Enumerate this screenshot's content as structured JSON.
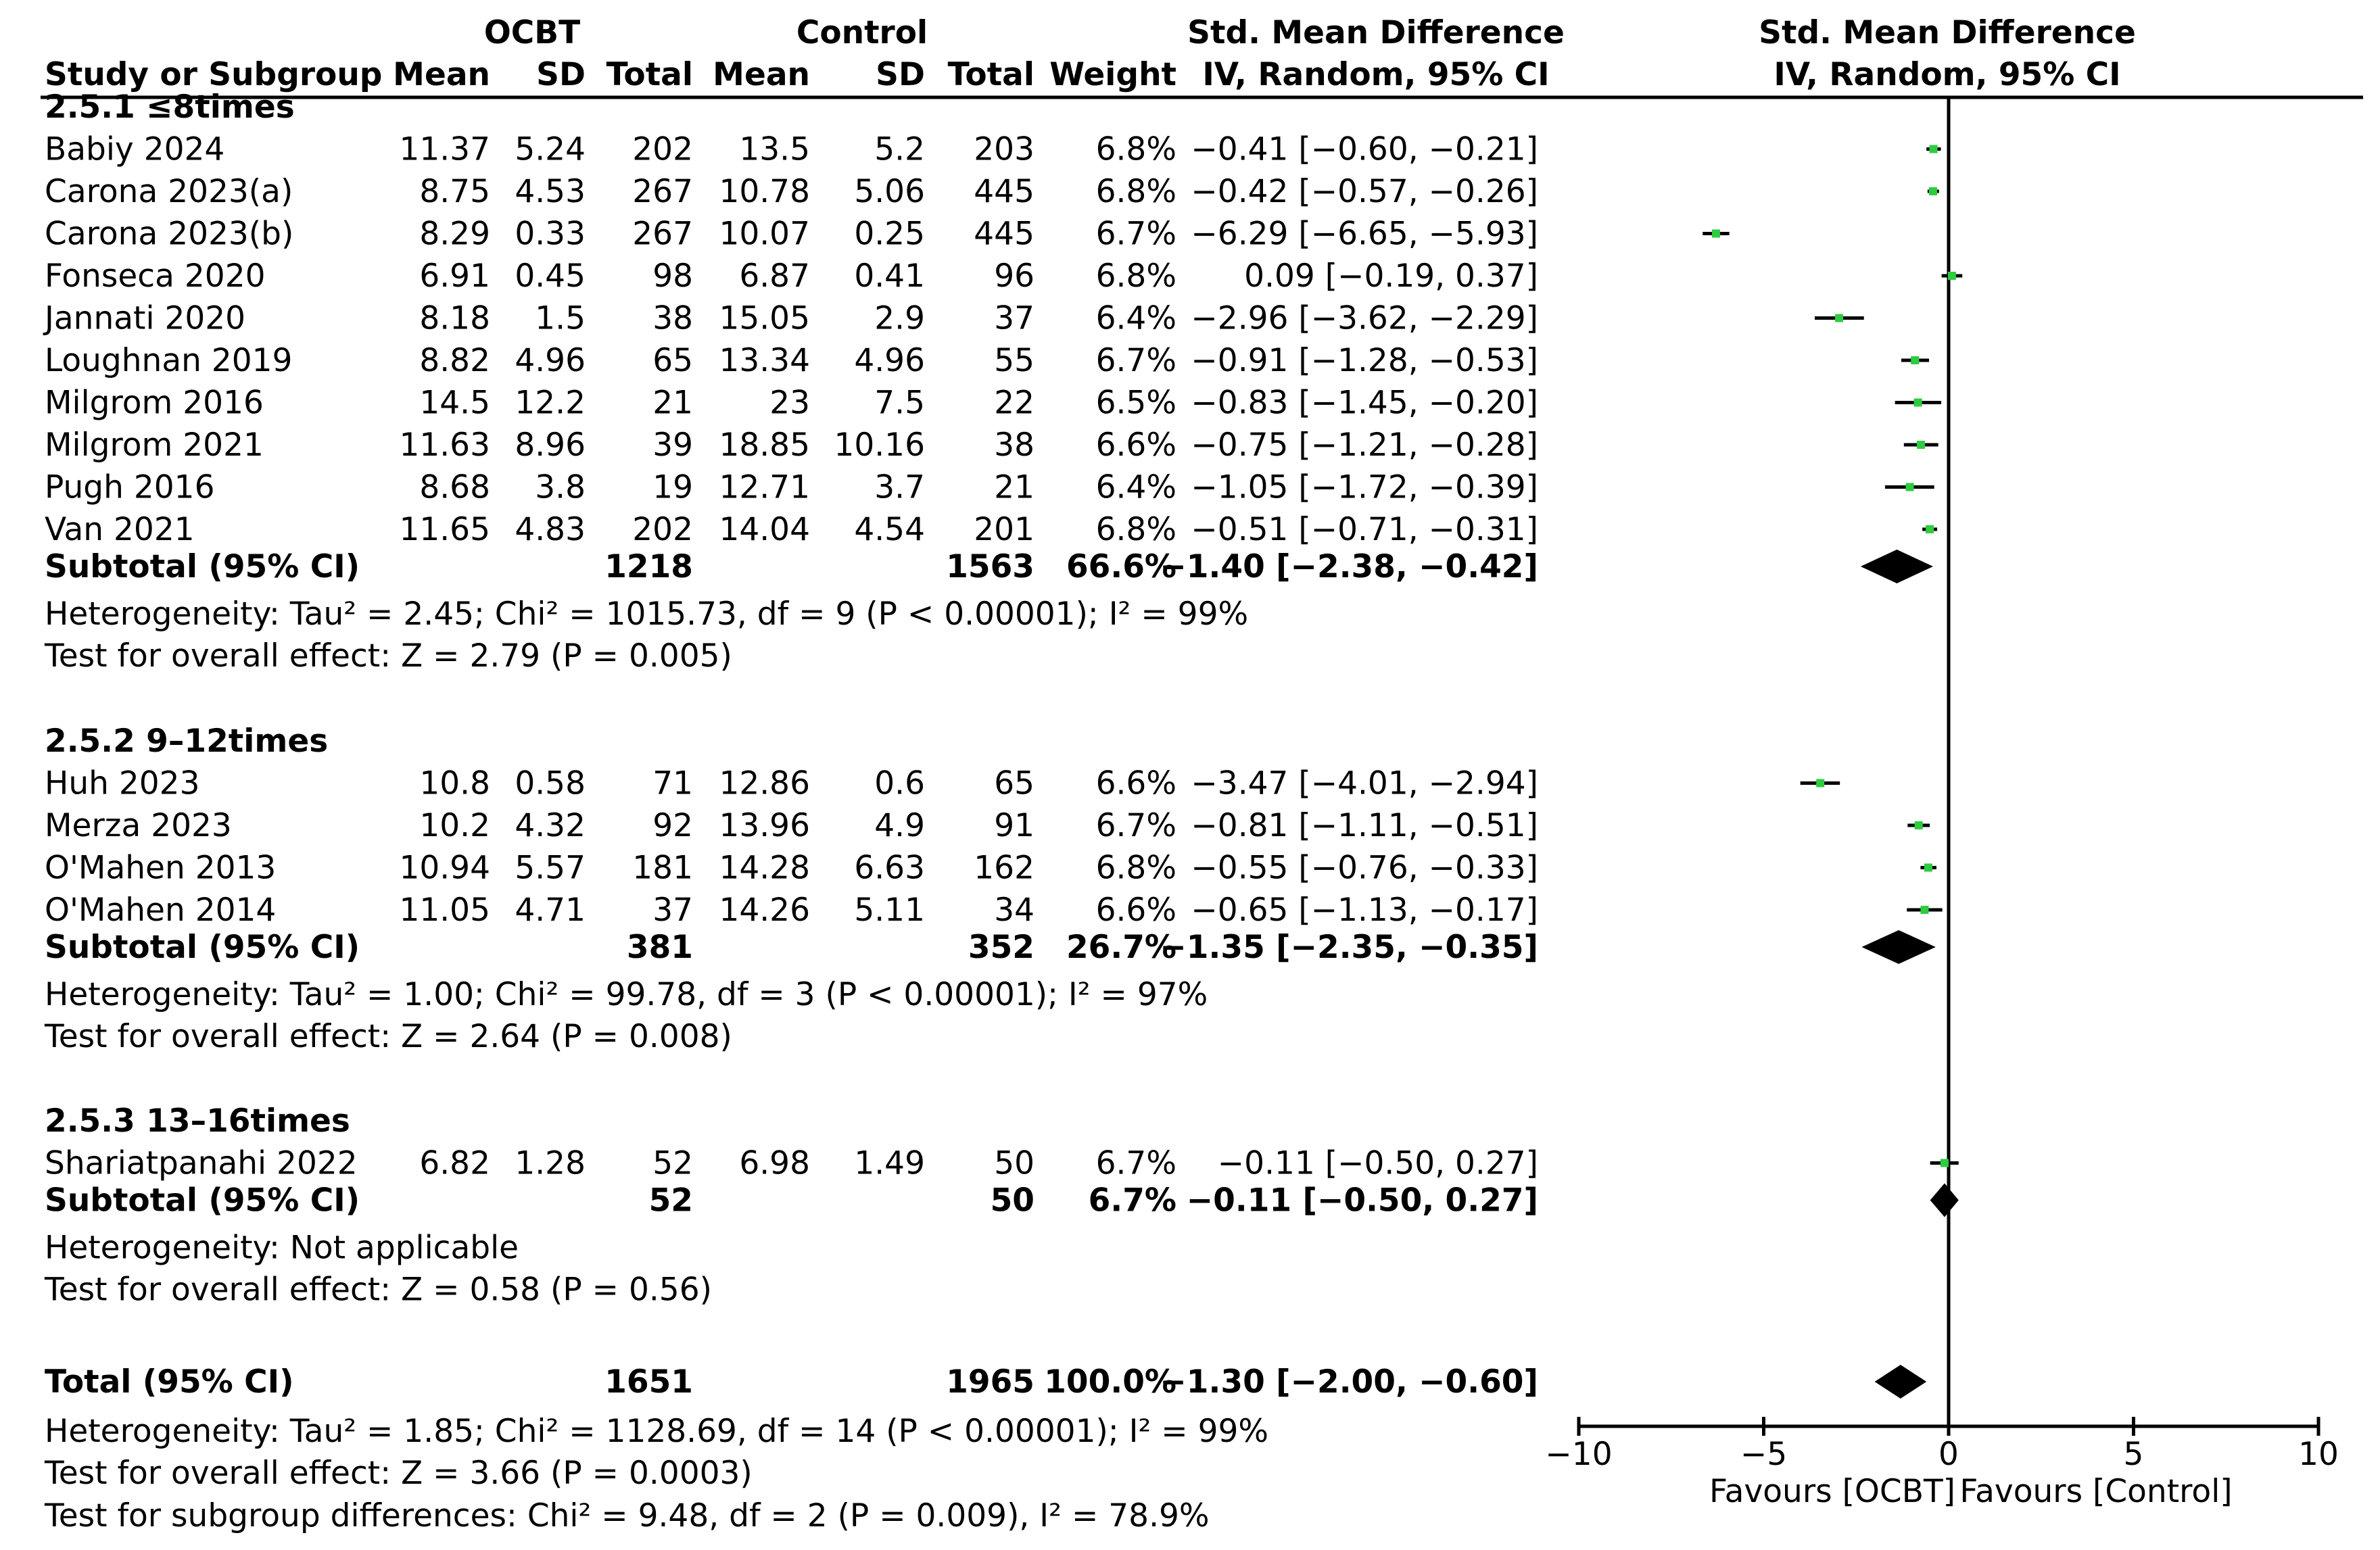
{
  "headers": {
    "group_exp": "OCBT",
    "group_ctrl": "Control",
    "study_col": "Study or Subgroup",
    "mean": "Mean",
    "sd": "SD",
    "total": "Total",
    "weight": "Weight",
    "effect_title": "Std. Mean Difference",
    "effect_method": "IV, Random, 95% CI",
    "plot_title": "Std. Mean Difference",
    "plot_method": "IV, Random, 95% CI"
  },
  "chart_data": {
    "type": "forest",
    "xlim": [
      -10,
      10
    ],
    "ticks": [
      -10,
      -5,
      0,
      5,
      10
    ],
    "favours_left": "Favours [OCBT]",
    "favours_right": "Favours [Control]",
    "subgroups": [
      {
        "label": "2.5.1 ≤8times",
        "studies": [
          {
            "name": "Babiy 2024",
            "m1": "11.37",
            "sd1": "5.24",
            "n1": "202",
            "m2": "13.5",
            "sd2": "5.2",
            "n2": "203",
            "weight": "6.8%",
            "ci_text": "−0.41 [−0.60, −0.21]",
            "est": -0.41,
            "lo": -0.6,
            "hi": -0.21
          },
          {
            "name": "Carona 2023(a)",
            "m1": "8.75",
            "sd1": "4.53",
            "n1": "267",
            "m2": "10.78",
            "sd2": "5.06",
            "n2": "445",
            "weight": "6.8%",
            "ci_text": "−0.42 [−0.57, −0.26]",
            "est": -0.42,
            "lo": -0.57,
            "hi": -0.26
          },
          {
            "name": "Carona 2023(b)",
            "m1": "8.29",
            "sd1": "0.33",
            "n1": "267",
            "m2": "10.07",
            "sd2": "0.25",
            "n2": "445",
            "weight": "6.7%",
            "ci_text": "−6.29 [−6.65, −5.93]",
            "est": -6.29,
            "lo": -6.65,
            "hi": -5.93
          },
          {
            "name": "Fonseca 2020",
            "m1": "6.91",
            "sd1": "0.45",
            "n1": "98",
            "m2": "6.87",
            "sd2": "0.41",
            "n2": "96",
            "weight": "6.8%",
            "ci_text": "0.09 [−0.19, 0.37]",
            "est": 0.09,
            "lo": -0.19,
            "hi": 0.37
          },
          {
            "name": "Jannati 2020",
            "m1": "8.18",
            "sd1": "1.5",
            "n1": "38",
            "m2": "15.05",
            "sd2": "2.9",
            "n2": "37",
            "weight": "6.4%",
            "ci_text": "−2.96 [−3.62, −2.29]",
            "est": -2.96,
            "lo": -3.62,
            "hi": -2.29
          },
          {
            "name": "Loughnan 2019",
            "m1": "8.82",
            "sd1": "4.96",
            "n1": "65",
            "m2": "13.34",
            "sd2": "4.96",
            "n2": "55",
            "weight": "6.7%",
            "ci_text": "−0.91 [−1.28, −0.53]",
            "est": -0.91,
            "lo": -1.28,
            "hi": -0.53
          },
          {
            "name": "Milgrom 2016",
            "m1": "14.5",
            "sd1": "12.2",
            "n1": "21",
            "m2": "23",
            "sd2": "7.5",
            "n2": "22",
            "weight": "6.5%",
            "ci_text": "−0.83 [−1.45, −0.20]",
            "est": -0.83,
            "lo": -1.45,
            "hi": -0.2
          },
          {
            "name": "Milgrom 2021",
            "m1": "11.63",
            "sd1": "8.96",
            "n1": "39",
            "m2": "18.85",
            "sd2": "10.16",
            "n2": "38",
            "weight": "6.6%",
            "ci_text": "−0.75 [−1.21, −0.28]",
            "est": -0.75,
            "lo": -1.21,
            "hi": -0.28
          },
          {
            "name": "Pugh 2016",
            "m1": "8.68",
            "sd1": "3.8",
            "n1": "19",
            "m2": "12.71",
            "sd2": "3.7",
            "n2": "21",
            "weight": "6.4%",
            "ci_text": "−1.05 [−1.72, −0.39]",
            "est": -1.05,
            "lo": -1.72,
            "hi": -0.39
          },
          {
            "name": "Van 2021",
            "m1": "11.65",
            "sd1": "4.83",
            "n1": "202",
            "m2": "14.04",
            "sd2": "4.54",
            "n2": "201",
            "weight": "6.8%",
            "ci_text": "−0.51 [−0.71, −0.31]",
            "est": -0.51,
            "lo": -0.71,
            "hi": -0.31
          }
        ],
        "subtotal": {
          "label": "Subtotal (95% CI)",
          "n1": "1218",
          "n2": "1563",
          "weight": "66.6%",
          "ci_text": "−1.40 [−2.38, −0.42]",
          "est": -1.4,
          "lo": -2.38,
          "hi": -0.42
        },
        "heterogeneity": "Heterogeneity: Tau² = 2.45; Chi² = 1015.73, df = 9 (P < 0.00001); I² = 99%",
        "overall": "Test for overall effect: Z = 2.79 (P = 0.005)"
      },
      {
        "label": "2.5.2 9–12times",
        "studies": [
          {
            "name": "Huh 2023",
            "m1": "10.8",
            "sd1": "0.58",
            "n1": "71",
            "m2": "12.86",
            "sd2": "0.6",
            "n2": "65",
            "weight": "6.6%",
            "ci_text": "−3.47 [−4.01, −2.94]",
            "est": -3.47,
            "lo": -4.01,
            "hi": -2.94
          },
          {
            "name": "Merza 2023",
            "m1": "10.2",
            "sd1": "4.32",
            "n1": "92",
            "m2": "13.96",
            "sd2": "4.9",
            "n2": "91",
            "weight": "6.7%",
            "ci_text": "−0.81 [−1.11, −0.51]",
            "est": -0.81,
            "lo": -1.11,
            "hi": -0.51
          },
          {
            "name": "O'Mahen 2013",
            "m1": "10.94",
            "sd1": "5.57",
            "n1": "181",
            "m2": "14.28",
            "sd2": "6.63",
            "n2": "162",
            "weight": "6.8%",
            "ci_text": "−0.55 [−0.76, −0.33]",
            "est": -0.55,
            "lo": -0.76,
            "hi": -0.33
          },
          {
            "name": "O'Mahen 2014",
            "m1": "11.05",
            "sd1": "4.71",
            "n1": "37",
            "m2": "14.26",
            "sd2": "5.11",
            "n2": "34",
            "weight": "6.6%",
            "ci_text": "−0.65 [−1.13, −0.17]",
            "est": -0.65,
            "lo": -1.13,
            "hi": -0.17
          }
        ],
        "subtotal": {
          "label": "Subtotal (95% CI)",
          "n1": "381",
          "n2": "352",
          "weight": "26.7%",
          "ci_text": "−1.35 [−2.35, −0.35]",
          "est": -1.35,
          "lo": -2.35,
          "hi": -0.35
        },
        "heterogeneity": "Heterogeneity: Tau² = 1.00; Chi² = 99.78, df = 3 (P < 0.00001); I² = 97%",
        "overall": "Test for overall effect: Z = 2.64 (P = 0.008)"
      },
      {
        "label": "2.5.3 13–16times",
        "studies": [
          {
            "name": "Shariatpanahi 2022",
            "m1": "6.82",
            "sd1": "1.28",
            "n1": "52",
            "m2": "6.98",
            "sd2": "1.49",
            "n2": "50",
            "weight": "6.7%",
            "ci_text": "−0.11 [−0.50, 0.27]",
            "est": -0.11,
            "lo": -0.5,
            "hi": 0.27
          }
        ],
        "subtotal": {
          "label": "Subtotal (95% CI)",
          "n1": "52",
          "n2": "50",
          "weight": "6.7%",
          "ci_text": "−0.11 [−0.50, 0.27]",
          "est": -0.11,
          "lo": -0.5,
          "hi": 0.27
        },
        "heterogeneity": "Heterogeneity: Not applicable",
        "overall": "Test for overall effect: Z = 0.58 (P = 0.56)"
      }
    ],
    "total": {
      "label": "Total (95% CI)",
      "n1": "1651",
      "n2": "1965",
      "weight": "100.0%",
      "ci_text": "−1.30 [−2.00, −0.60]",
      "est": -1.3,
      "lo": -2.0,
      "hi": -0.6
    },
    "total_heterogeneity": "Heterogeneity: Tau² = 1.85; Chi² = 1128.69, df = 14 (P < 0.00001); I² = 99%",
    "total_overall": "Test for overall effect: Z = 3.66 (P = 0.0003)",
    "subgroup_differences": "Test for subgroup differences: Chi² = 9.48, df = 2 (P = 0.009), I² = 78.9%"
  },
  "colors": {
    "marker": "#2ecc40",
    "line": "#000000"
  }
}
